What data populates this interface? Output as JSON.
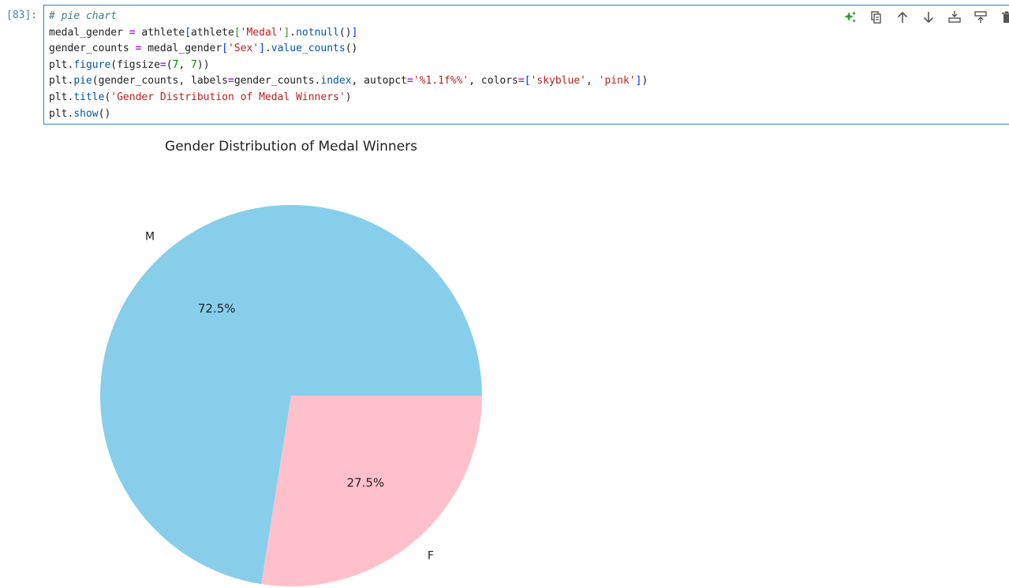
{
  "cell": {
    "prompt": "[83]:",
    "code_lines": [
      "# pie chart",
      "medal_gender = athlete[athlete['Medal'].notnull()]",
      "gender_counts = medal_gender['Sex'].value_counts()",
      "plt.figure(figsize=(7, 7))",
      "plt.pie(gender_counts, labels=gender_counts.index, autopct='%1.1f%%', colors=['skyblue', 'pink'])",
      "plt.title('Gender Distribution of Medal Winners')",
      "plt.show()"
    ]
  },
  "toolbar": {
    "icons": [
      "sparkle-icon",
      "copy-icon",
      "arrow-up-icon",
      "arrow-down-icon",
      "insert-above-icon",
      "insert-below-icon",
      "trash-icon"
    ],
    "accent": "#2e9e3b"
  },
  "chart_data": {
    "type": "pie",
    "title": "Gender Distribution of Medal Winners",
    "labels": [
      "M",
      "F"
    ],
    "values": [
      72.5,
      27.5
    ],
    "autopct": [
      "72.5%",
      "27.5%"
    ],
    "colors": [
      "#87ceeb",
      "#ffc0cb"
    ],
    "startangle": 0
  }
}
